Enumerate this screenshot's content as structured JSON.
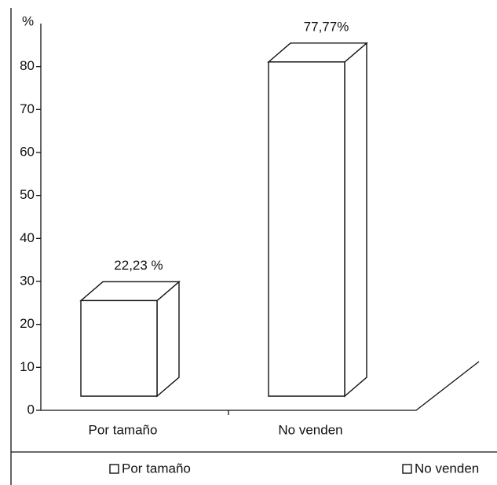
{
  "chart_data": {
    "type": "bar3d",
    "y_label": "%",
    "categories": [
      "Por tamaño",
      "No venden"
    ],
    "values": [
      22.23,
      77.77
    ],
    "value_labels": [
      "22,23 %",
      "77,77%"
    ],
    "color": "#ffffff",
    "ylim": [
      0,
      90
    ],
    "yticks": [
      0,
      10,
      20,
      30,
      40,
      50,
      60,
      70,
      80
    ],
    "legend": "bottom"
  }
}
